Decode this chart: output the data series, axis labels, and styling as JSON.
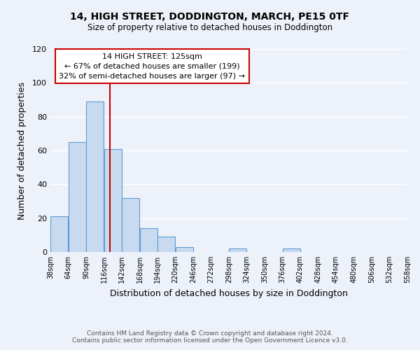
{
  "title": "14, HIGH STREET, DODDINGTON, MARCH, PE15 0TF",
  "subtitle": "Size of property relative to detached houses in Doddington",
  "xlabel": "Distribution of detached houses by size in Doddington",
  "ylabel": "Number of detached properties",
  "footer_line1": "Contains HM Land Registry data © Crown copyright and database right 2024.",
  "footer_line2": "Contains public sector information licensed under the Open Government Licence v3.0.",
  "bar_edges": [
    38,
    64,
    90,
    116,
    142,
    168,
    194,
    220,
    246,
    272,
    298,
    324,
    350,
    376,
    402,
    428,
    454,
    480,
    506,
    532,
    558
  ],
  "bar_heights": [
    21,
    65,
    89,
    61,
    32,
    14,
    9,
    3,
    0,
    0,
    2,
    0,
    0,
    2,
    0,
    0,
    0,
    0,
    0,
    0
  ],
  "bar_color": "#c8daf0",
  "bar_edge_color": "#5b9bd5",
  "property_line_x": 125,
  "annotation_box_text_line1": "14 HIGH STREET: 125sqm",
  "annotation_box_text_line2": "← 67% of detached houses are smaller (199)",
  "annotation_box_text_line3": "32% of semi-detached houses are larger (97) →",
  "annotation_box_color": "white",
  "annotation_box_edge_color": "#cc0000",
  "property_line_color": "#cc0000",
  "xlim_left": 38,
  "xlim_right": 558,
  "ylim_top": 120,
  "yticks": [
    0,
    20,
    40,
    60,
    80,
    100,
    120
  ],
  "tick_labels": [
    "38sqm",
    "64sqm",
    "90sqm",
    "116sqm",
    "142sqm",
    "168sqm",
    "194sqm",
    "220sqm",
    "246sqm",
    "272sqm",
    "298sqm",
    "324sqm",
    "350sqm",
    "376sqm",
    "402sqm",
    "428sqm",
    "454sqm",
    "480sqm",
    "506sqm",
    "532sqm",
    "558sqm"
  ],
  "background_color": "#edf2fa",
  "grid_color": "#ffffff"
}
